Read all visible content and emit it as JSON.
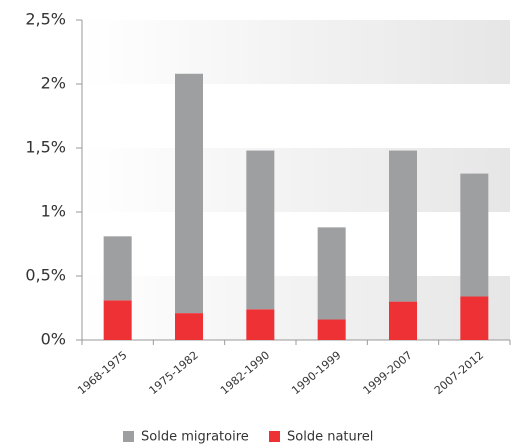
{
  "chart_data": {
    "type": "bar",
    "stacked": true,
    "categories": [
      "1968-1975",
      "1975-1982",
      "1982-1990",
      "1990-1999",
      "1999-2007",
      "2007-2012"
    ],
    "series": [
      {
        "name": "Solde migratoire",
        "color": "#9e9fa1",
        "values": [
          0.5,
          1.87,
          1.24,
          0.72,
          1.18,
          0.96
        ]
      },
      {
        "name": "Solde naturel",
        "color": "#ee3135",
        "values": [
          0.31,
          0.21,
          0.24,
          0.16,
          0.3,
          0.34
        ]
      }
    ],
    "ylim": [
      0,
      2.5
    ],
    "yticks": [
      {
        "value": 0,
        "label": "0%"
      },
      {
        "value": 0.5,
        "label": "0,5%"
      },
      {
        "value": 1,
        "label": "1%"
      },
      {
        "value": 1.5,
        "label": "1,5%"
      },
      {
        "value": 2,
        "label": "2%"
      },
      {
        "value": 2.5,
        "label": "2,5%"
      }
    ],
    "legend": "bottom"
  }
}
